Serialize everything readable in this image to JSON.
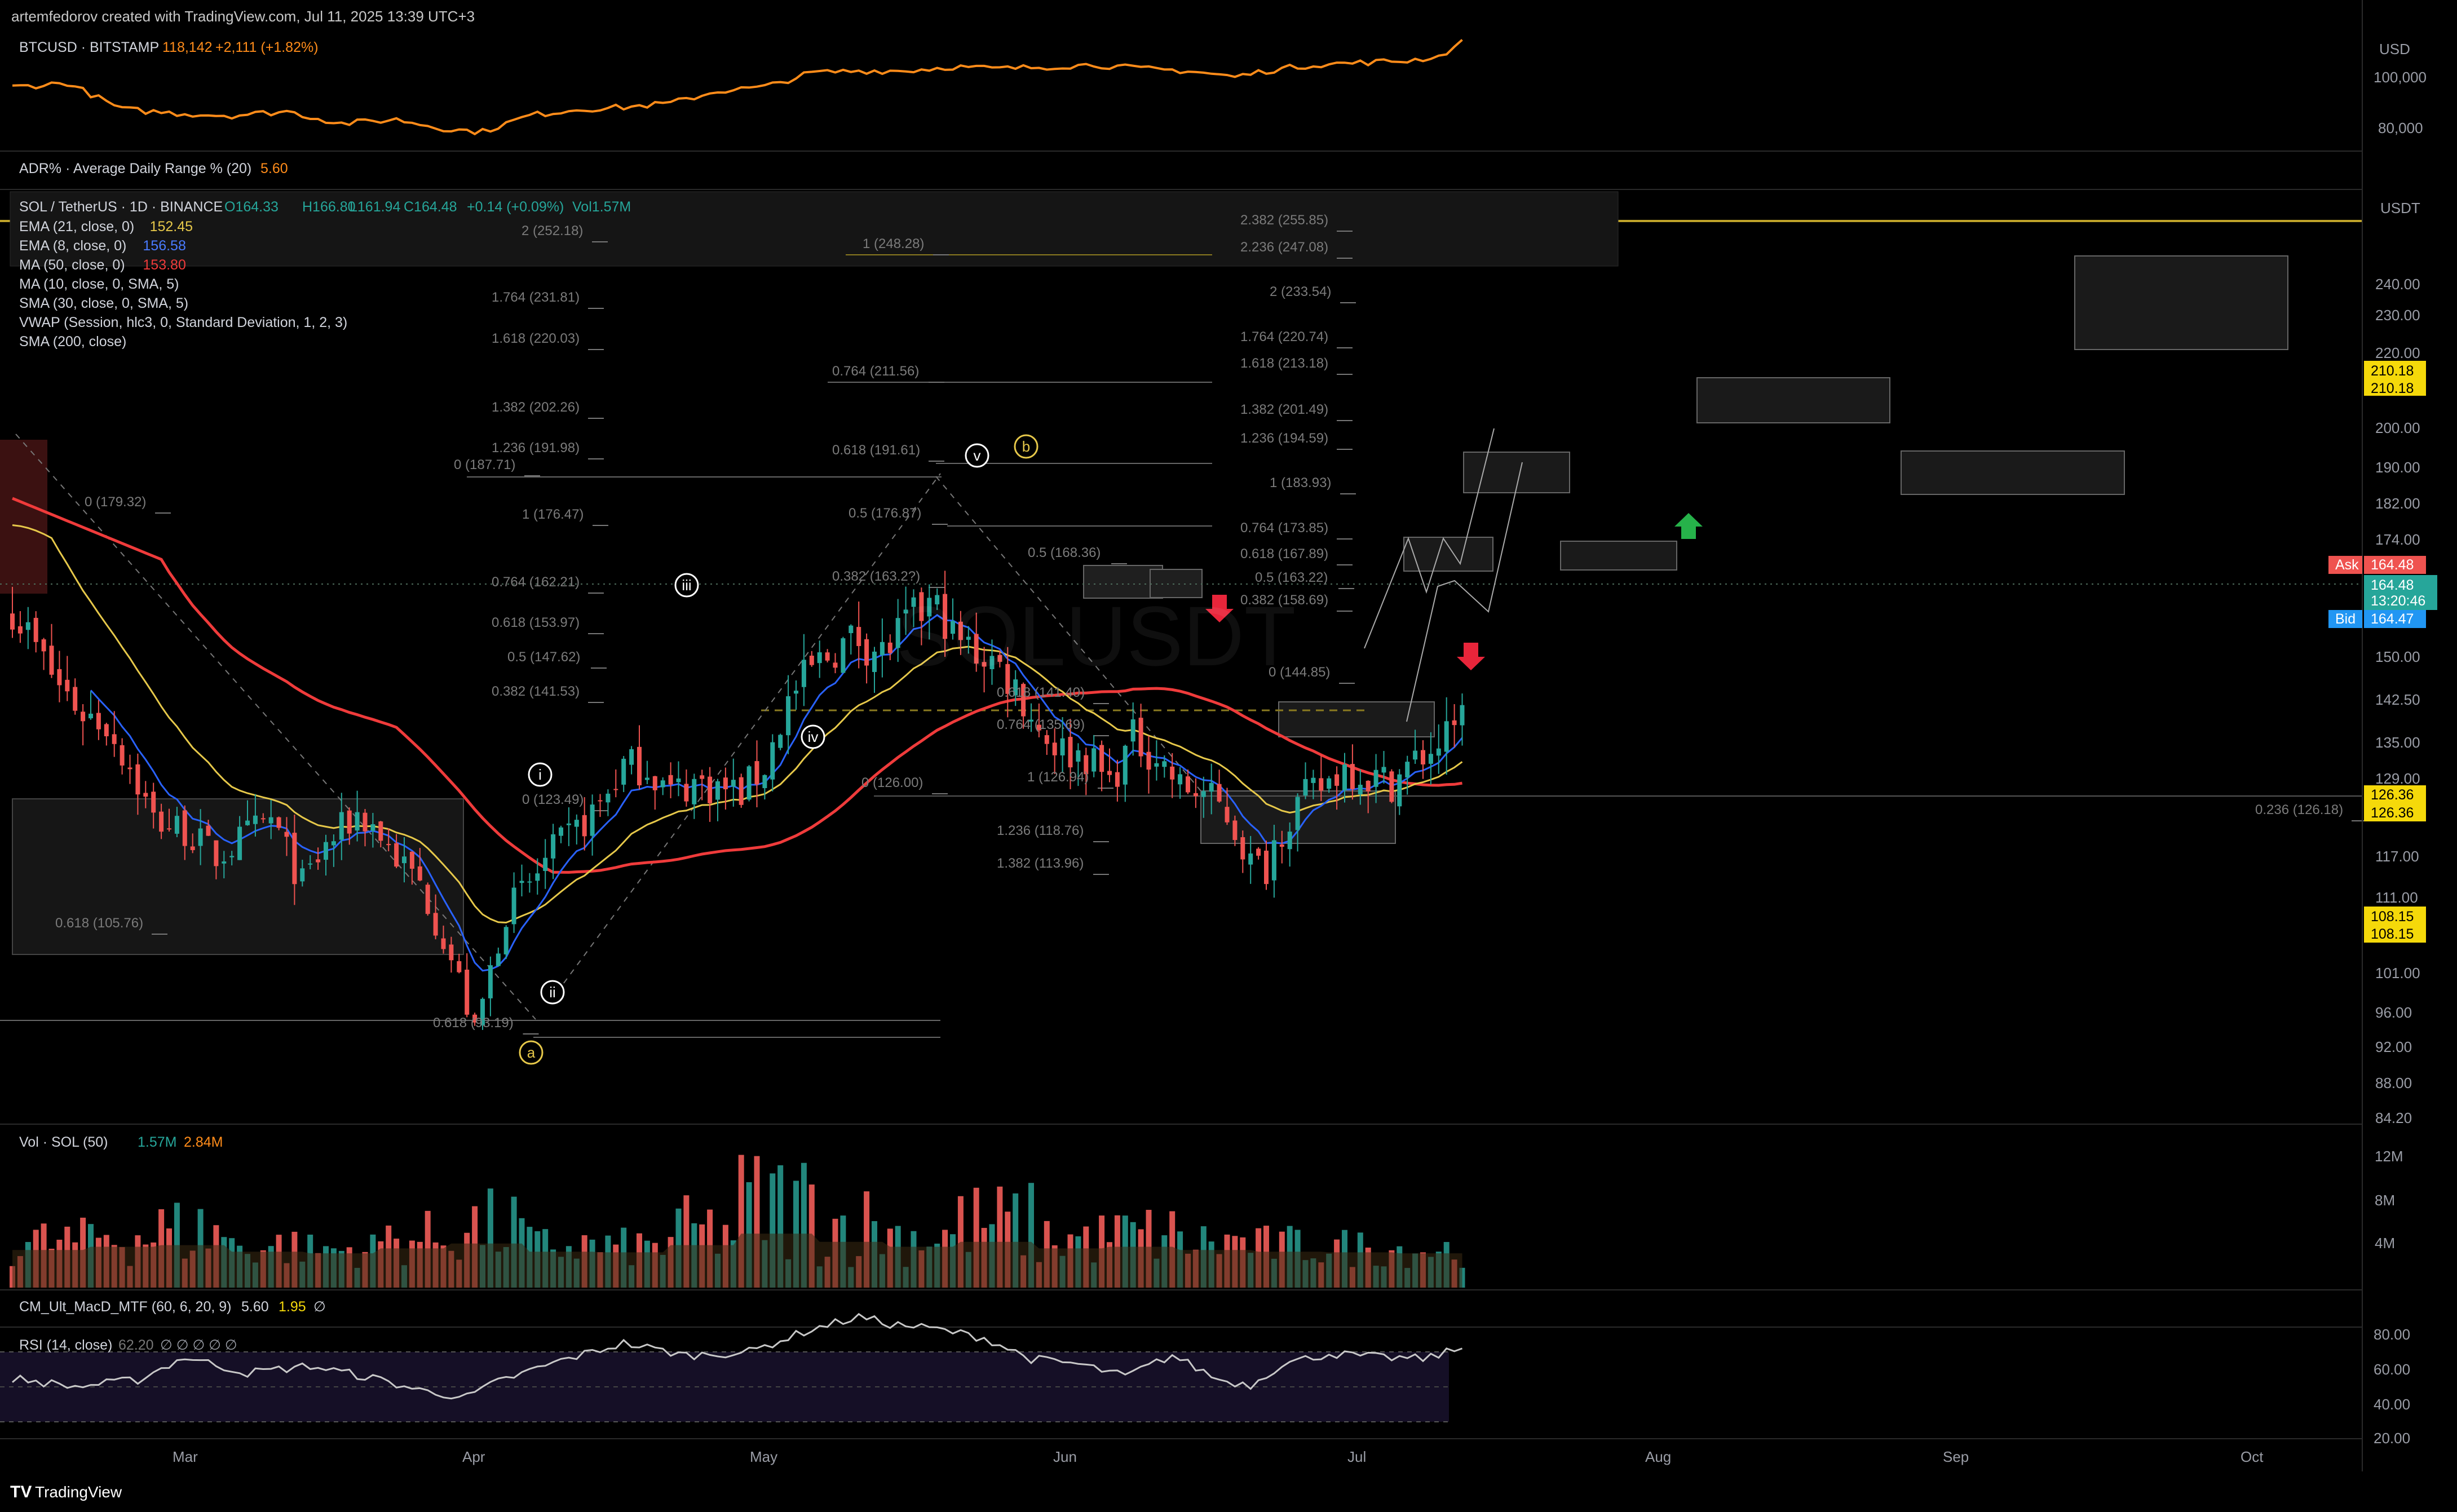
{
  "header": {
    "watermark_text": "artemfedorov created with TradingView.com, Jul 11, 2025 13:39 UTC+3"
  },
  "footer": {
    "brand": "TradingView",
    "logo_text": "TV"
  },
  "colors": {
    "bg": "#000000",
    "up": "#26a69a",
    "down": "#ef5350",
    "btc_line": "#ff8c1a",
    "ema21": "#e6c84a",
    "ema8": "#2962ff",
    "ma50": "#ef3b3b",
    "gold_line": "#bfa32a"
  },
  "btc_pane": {
    "legend": {
      "symbol": "BTCUSD · BITSTAMP",
      "price": "118,142",
      "change": "+2,111 (+1.82%)"
    },
    "currency": "USD",
    "ticks": [
      "100,000",
      "80,000"
    ]
  },
  "adr_pane": {
    "legend": {
      "name": "ADR% · Average Daily Range % (20)",
      "value": "5.60"
    }
  },
  "main_pane": {
    "legend": {
      "symbol": "SOL / TetherUS · 1D · BINANCE",
      "o": "O164.33",
      "h": "H166.80",
      "l": "L161.94",
      "c": "C164.48",
      "chg": "+0.14 (+0.09%)",
      "vol": "Vol1.57M",
      "indicators": [
        {
          "name": "EMA (21, close, 0)",
          "value": "152.45",
          "color": "#e6c84a"
        },
        {
          "name": "EMA (8, close, 0)",
          "value": "156.58",
          "color": "#4a7bff"
        },
        {
          "name": "MA (50, close, 0)",
          "value": "153.80",
          "color": "#ef3b3b"
        },
        {
          "name": "MA (10, close, 0, SMA, 5)",
          "value": "",
          "color": "#d1d4dc"
        },
        {
          "name": "SMA (30, close, 0, SMA, 5)",
          "value": "",
          "color": "#d1d4dc"
        },
        {
          "name": "VWAP (Session, hlc3, 0, Standard Deviation, 1, 2, 3)",
          "value": "",
          "color": "#d1d4dc"
        },
        {
          "name": "SMA (200, close)",
          "value": "",
          "color": "#d1d4dc"
        }
      ]
    },
    "currency": "USDT",
    "price_ticks": [
      "240.00",
      "230.00",
      "220.00",
      "200.00",
      "190.00",
      "182.00",
      "174.00",
      "150.00",
      "142.50",
      "135.00",
      "129.00",
      "117.00",
      "111.00",
      "101.00",
      "96.00",
      "92.00",
      "88.00",
      "84.20"
    ],
    "price_tags": {
      "tag_210_a": "210.18",
      "tag_210_b": "210.18",
      "ask_label": "Ask",
      "ask": "164.48",
      "last": "164.48",
      "countdown": "13:20:46",
      "bid_label": "Bid",
      "bid": "164.47",
      "tag_126_a": "126.36",
      "tag_126_b": "126.36",
      "tag_108_a": "108.15",
      "tag_108_b": "108.15"
    },
    "watermark_symbol": "SOLUSDT"
  },
  "fib_labels": [
    "2 (252.18)",
    "1.764 (231.81)",
    "1.618 (220.03)",
    "1.382 (202.26)",
    "1.236 (191.98)",
    "0 (187.71)",
    "0 (179.32)",
    "1 (176.47)",
    "0.764 (162.21)",
    "0.618 (153.97)",
    "0.5 (147.62)",
    "0.382 (141.53)",
    "0 (123.49)",
    "0.618 (105.76)",
    "0.618 (93.19)",
    "1 (248.28)",
    "0.764 (211.56)",
    "0.618 (191.61)",
    "0.5 (176.87)",
    "0.382 (163.2?)",
    "0.5 (168.36)",
    "0.618 (141.40)",
    "0.764 (135.69)",
    "1 (126.94)",
    "0 (126.00)",
    "1.236 (118.76)",
    "1.382 (113.96)",
    "2.382 (255.85)",
    "2.236 (247.08)",
    "2 (233.54)",
    "1.764 (220.74)",
    "1.618 (213.18)",
    "1.382 (201.49)",
    "1.236 (194.59)",
    "1 (183.93)",
    "0.764 (173.85)",
    "0.618 (167.89)",
    "0.5 (163.22)",
    "0.382 (158.69)",
    "0 (144.85)",
    "0.236 (126.18)"
  ],
  "wave_labels": [
    "i",
    "ii",
    "iii",
    "iv",
    "v",
    "a",
    "b"
  ],
  "volume_pane": {
    "legend": {
      "name": "Vol · SOL (50)",
      "v1": "1.57M",
      "v2": "2.84M"
    },
    "ticks": [
      "12M",
      "8M",
      "4M"
    ]
  },
  "macd_pane": {
    "legend": {
      "name": "CM_Ult_MacD_MTF (60, 6, 20, 9)",
      "v1": "5.60",
      "v2": "1.95",
      "v3": "∅"
    }
  },
  "rsi_pane": {
    "legend": {
      "name": "RSI (14, close)",
      "value": "62.20",
      "extra": "∅ ∅ ∅ ∅ ∅"
    },
    "ticks": [
      "80.00",
      "60.00",
      "40.00",
      "20.00"
    ]
  },
  "time_axis": {
    "labels": [
      "Mar",
      "Apr",
      "May",
      "Jun",
      "Jul",
      "Aug",
      "Sep",
      "Oct"
    ]
  },
  "chart_data": {
    "type": "candlestick",
    "title": "SOL / TetherUS · 1D · BINANCE",
    "price_range": [
      84.2,
      260
    ],
    "x_labels": [
      "Mar",
      "Apr",
      "May",
      "Jun",
      "Jul",
      "Aug",
      "Sep",
      "Oct"
    ],
    "key_prices": {
      "bottom_apr": 95.26,
      "top_may": 187.71,
      "low_jun": 126.0,
      "last_close": 164.48,
      "high_jul": 166.8
    },
    "waypoints_close": [
      [
        0,
        180
      ],
      [
        3,
        172
      ],
      [
        6,
        165
      ],
      [
        9,
        160
      ],
      [
        12,
        158
      ],
      [
        15,
        150
      ],
      [
        18,
        140
      ],
      [
        22,
        138
      ],
      [
        26,
        133
      ],
      [
        30,
        137
      ],
      [
        33,
        140
      ],
      [
        37,
        128
      ],
      [
        40,
        135
      ],
      [
        44,
        141
      ],
      [
        46,
        139
      ],
      [
        49,
        133
      ],
      [
        52,
        128
      ],
      [
        55,
        118
      ],
      [
        57,
        110
      ],
      [
        59,
        100
      ],
      [
        61,
        112
      ],
      [
        63,
        123
      ],
      [
        66,
        128
      ],
      [
        69,
        134
      ],
      [
        72,
        138
      ],
      [
        75,
        143
      ],
      [
        78,
        150
      ],
      [
        81,
        150
      ],
      [
        84,
        145
      ],
      [
        87,
        147
      ],
      [
        90,
        146
      ],
      [
        93,
        145
      ],
      [
        96,
        150
      ],
      [
        99,
        162
      ],
      [
        102,
        168
      ],
      [
        105,
        172
      ],
      [
        108,
        174
      ],
      [
        111,
        171
      ],
      [
        114,
        176
      ],
      [
        117,
        180
      ],
      [
        119,
        178
      ],
      [
        120,
        174
      ],
      [
        122,
        172
      ],
      [
        125,
        170
      ],
      [
        128,
        165
      ],
      [
        131,
        157
      ],
      [
        134,
        153
      ],
      [
        137,
        152
      ],
      [
        140,
        147
      ],
      [
        143,
        155
      ],
      [
        146,
        152
      ],
      [
        149,
        146
      ],
      [
        152,
        145
      ],
      [
        155,
        141
      ],
      [
        158,
        132
      ],
      [
        160,
        131
      ],
      [
        161,
        136
      ],
      [
        164,
        143
      ],
      [
        167,
        146
      ],
      [
        170,
        150
      ],
      [
        173,
        148
      ],
      [
        176,
        147
      ],
      [
        179,
        151
      ],
      [
        182,
        154
      ],
      [
        184,
        156
      ],
      [
        185,
        164
      ]
    ],
    "btc_waypoints": [
      [
        0,
        96
      ],
      [
        7,
        98
      ],
      [
        14,
        85
      ],
      [
        21,
        83
      ],
      [
        28,
        82
      ],
      [
        35,
        84
      ],
      [
        42,
        78
      ],
      [
        49,
        80
      ],
      [
        56,
        75
      ],
      [
        60,
        74
      ],
      [
        66,
        82
      ],
      [
        72,
        85
      ],
      [
        78,
        86
      ],
      [
        84,
        88
      ],
      [
        90,
        94
      ],
      [
        96,
        96
      ],
      [
        102,
        103
      ],
      [
        108,
        104
      ],
      [
        114,
        104
      ],
      [
        120,
        106
      ],
      [
        126,
        105
      ],
      [
        132,
        106
      ],
      [
        138,
        107
      ],
      [
        144,
        105
      ],
      [
        150,
        104
      ],
      [
        156,
        101
      ],
      [
        160,
        104
      ],
      [
        166,
        107
      ],
      [
        172,
        108
      ],
      [
        178,
        109
      ],
      [
        182,
        111
      ],
      [
        185,
        118
      ]
    ],
    "rsi_waypoints": [
      [
        0,
        45
      ],
      [
        8,
        40
      ],
      [
        16,
        44
      ],
      [
        22,
        57
      ],
      [
        30,
        48
      ],
      [
        38,
        52
      ],
      [
        46,
        45
      ],
      [
        52,
        38
      ],
      [
        58,
        34
      ],
      [
        62,
        43
      ],
      [
        70,
        55
      ],
      [
        78,
        65
      ],
      [
        86,
        58
      ],
      [
        94,
        60
      ],
      [
        102,
        73
      ],
      [
        108,
        80
      ],
      [
        112,
        76
      ],
      [
        118,
        73
      ],
      [
        124,
        68
      ],
      [
        130,
        56
      ],
      [
        136,
        53
      ],
      [
        142,
        46
      ],
      [
        148,
        58
      ],
      [
        154,
        44
      ],
      [
        158,
        41
      ],
      [
        162,
        53
      ],
      [
        168,
        59
      ],
      [
        174,
        57
      ],
      [
        180,
        56
      ],
      [
        185,
        62
      ]
    ],
    "volume_levels": [
      0.35,
      0.45,
      0.5,
      0.3,
      0.25,
      0.4,
      0.55,
      0.3,
      0.28,
      0.5,
      0.85,
      0.6,
      0.45,
      0.6,
      0.4,
      0.45,
      0.35,
      0.3,
      0.28,
      0.25
    ]
  }
}
